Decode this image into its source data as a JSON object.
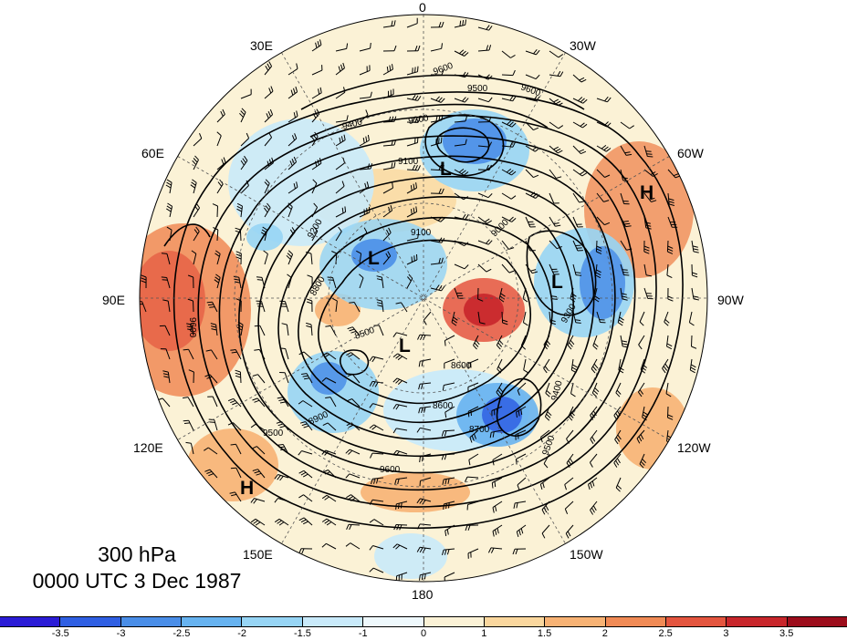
{
  "title": {
    "level": "300 hPa",
    "datetime": "0000 UTC 3 Dec 1987"
  },
  "longitude_labels": [
    "0",
    "30W",
    "60W",
    "90W",
    "120W",
    "150W",
    "180",
    "150E",
    "120E",
    "90E",
    "60E",
    "30E"
  ],
  "pressure_systems": [
    "L",
    "L",
    "L",
    "L",
    "H",
    "H"
  ],
  "contour_labels": [
    "9600",
    "9500",
    "9400",
    "9300",
    "9200",
    "9100",
    "9000",
    "8900",
    "8800",
    "8700",
    "8600",
    "8500"
  ],
  "colorbar": {
    "colors": [
      "#2b1cd6",
      "#2f5fe3",
      "#4a8ee8",
      "#67b3f0",
      "#97d5f5",
      "#c9eafa",
      "#eef8fc",
      "#fbf2d6",
      "#fad79e",
      "#f7b274",
      "#f08a55",
      "#e4553f",
      "#c8262b",
      "#9c0d1b"
    ],
    "tick_labels": [
      "-3.5",
      "-3",
      "-2.5",
      "-2",
      "-1.5",
      "-1",
      "0",
      "1",
      "1.5",
      "2",
      "2.5",
      "3",
      "3.5"
    ]
  },
  "colors": {
    "background": "#ffffff",
    "contour": "#000000",
    "grid": "#555555"
  }
}
